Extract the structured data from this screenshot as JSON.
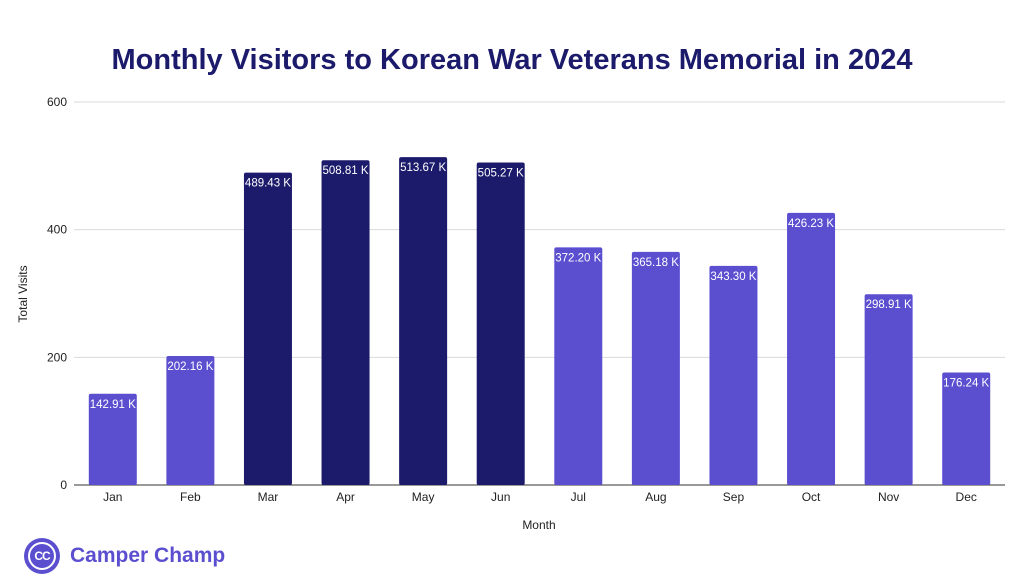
{
  "chart_data": {
    "type": "bar",
    "title": "Monthly Visitors to Korean War Veterans Memorial in 2024",
    "xlabel": "Month",
    "ylabel": "Total Visits",
    "ylim": [
      0,
      600
    ],
    "yticks": [
      0,
      200,
      400,
      600
    ],
    "grid": true,
    "categories": [
      "Jan",
      "Feb",
      "Mar",
      "Apr",
      "May",
      "Jun",
      "Jul",
      "Aug",
      "Sep",
      "Oct",
      "Nov",
      "Dec"
    ],
    "values": [
      142.91,
      202.16,
      489.43,
      508.81,
      513.67,
      505.27,
      372.2,
      365.18,
      343.3,
      426.23,
      298.91,
      176.24
    ],
    "labels": [
      "142.91 K",
      "202.16 K",
      "489.43 K",
      "508.81 K",
      "513.67 K",
      "505.27 K",
      "372.20 K",
      "365.18 K",
      "343.30 K",
      "426.23 K",
      "298.91 K",
      "176.24 K"
    ],
    "highlighted": [
      false,
      false,
      true,
      true,
      true,
      true,
      false,
      false,
      false,
      false,
      false,
      false
    ],
    "colors": {
      "normal": "#5b4fd0",
      "highlight": "#1c1a6b",
      "grid": "#d9d9d9",
      "title": "#1c1a6b"
    }
  },
  "brand": {
    "logo_text": "CC",
    "name": "Camper Champ"
  }
}
